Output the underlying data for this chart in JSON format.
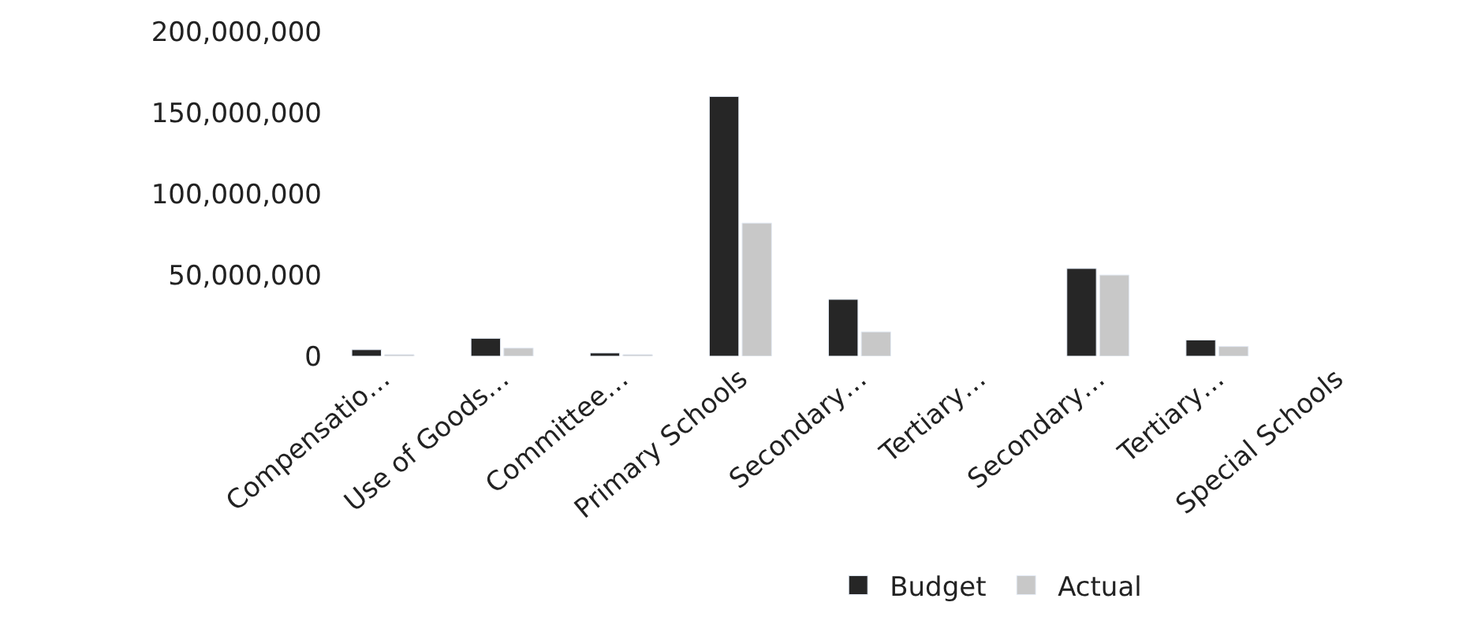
{
  "chart_data": {
    "type": "bar",
    "categories": [
      "Compensatio…",
      "Use of Goods…",
      "Committee…",
      "Primary Schools",
      "Secondary…",
      "Tertiary…",
      "Secondary…",
      "Tertiary…",
      "Special Schools"
    ],
    "series": [
      {
        "name": "Budget",
        "color": "#262626",
        "values": [
          4000000,
          11000000,
          2000000,
          160000000,
          35000000,
          null,
          54000000,
          10000000,
          null
        ]
      },
      {
        "name": "Actual",
        "color": "#c8c8c8",
        "values": [
          1000000,
          5000000,
          1000000,
          82000000,
          15000000,
          null,
          50000000,
          6000000,
          null
        ]
      }
    ],
    "ylim": [
      0,
      200000000
    ],
    "yticks": [
      {
        "value": 0,
        "label": "0"
      },
      {
        "value": 50000000,
        "label": "50,000,000"
      },
      {
        "value": 100000000,
        "label": "100,000,000"
      },
      {
        "value": 150000000,
        "label": "150,000,000"
      },
      {
        "value": 200000000,
        "label": "200,000,000"
      }
    ],
    "legend": "bottom"
  }
}
